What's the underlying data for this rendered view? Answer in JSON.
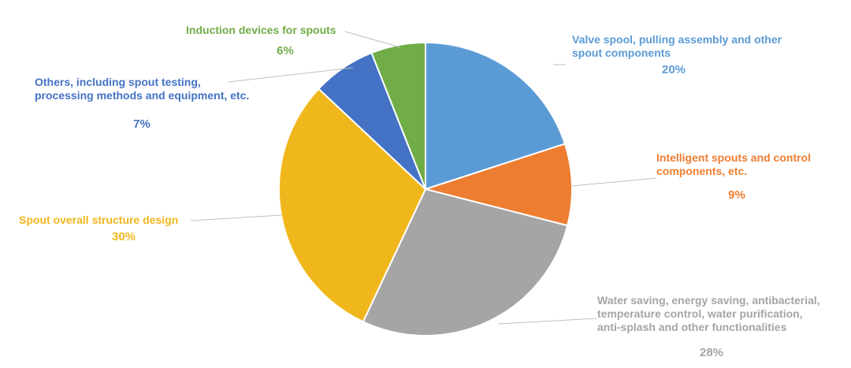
{
  "chart_data": {
    "type": "pie",
    "title": "",
    "slices": [
      {
        "label_lines": [
          "Valve spool, pulling assembly and other",
          "spout components"
        ],
        "value": 20,
        "value_label": "20%",
        "color": "#5b9bd5"
      },
      {
        "label_lines": [
          "Intelligent spouts and control",
          "components, etc."
        ],
        "value": 9,
        "value_label": "9%",
        "color": "#ed7d31"
      },
      {
        "label_lines": [
          "Water saving, energy saving, antibacterial,",
          "temperature control, water purification,",
          "anti-splash and other functionalities"
        ],
        "value": 28,
        "value_label": "28%",
        "color": "#a5a5a5"
      },
      {
        "label_lines": [
          "Spout overall structure design"
        ],
        "value": 30,
        "value_label": "30%",
        "color": "#f0b71c"
      },
      {
        "label_lines": [
          "Others, including spout testing,",
          "processing methods and equipment, etc."
        ],
        "value": 7,
        "value_label": "7%",
        "color": "#4472c4"
      },
      {
        "label_lines": [
          "Induction devices for spouts"
        ],
        "value": 6,
        "value_label": "6%",
        "color": "#70ad47"
      }
    ],
    "start_angle": "12 o'clock",
    "direction": "clockwise",
    "legend": "none"
  }
}
